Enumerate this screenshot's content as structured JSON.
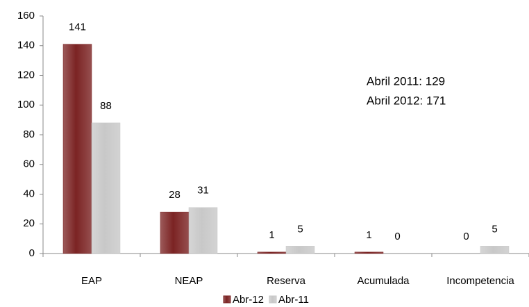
{
  "chart_data": {
    "type": "bar",
    "categories": [
      "EAP",
      "NEAP",
      "Reserva",
      "Acumulada",
      "Incompetencia"
    ],
    "series": [
      {
        "name": "Abr-12",
        "color": "#7b2323",
        "values": [
          141,
          28,
          1,
          1,
          0
        ]
      },
      {
        "name": "Abr-11",
        "color": "#c8c8c8",
        "values": [
          88,
          31,
          5,
          0,
          5
        ]
      }
    ],
    "ylim": [
      0,
      160
    ],
    "yticks": [
      0,
      20,
      40,
      60,
      80,
      100,
      120,
      140,
      160
    ],
    "grid": false,
    "annotations": [
      "Abril 2011: 129",
      "Abril 2012: 171"
    ],
    "legend": "bottom"
  }
}
